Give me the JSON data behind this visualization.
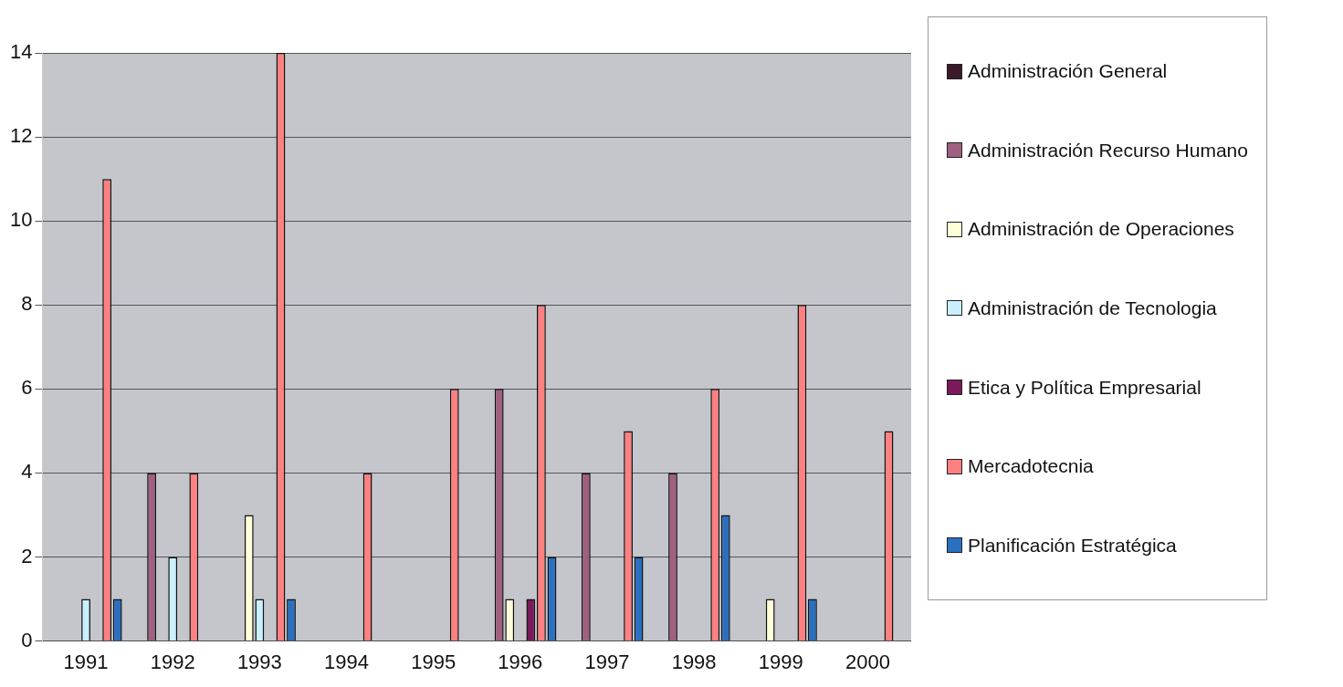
{
  "chart_data": {
    "type": "bar",
    "categories": [
      "1991",
      "1992",
      "1993",
      "1994",
      "1995",
      "1996",
      "1997",
      "1998",
      "1999",
      "2000"
    ],
    "series": [
      {
        "name": "Administración General",
        "color": "#3a1a2a",
        "values": [
          0,
          0,
          0,
          0,
          0,
          0,
          0,
          0,
          0,
          0
        ]
      },
      {
        "name": "Administración Recurso Humano",
        "color": "#a0607f",
        "values": [
          0,
          4,
          0,
          0,
          0,
          6,
          4,
          4,
          0,
          0
        ]
      },
      {
        "name": "Administración de Operaciones",
        "color": "#ffffd8",
        "values": [
          0,
          0,
          3,
          0,
          0,
          1,
          0,
          0,
          1,
          0
        ]
      },
      {
        "name": "Administración de Tecnologia",
        "color": "#c8f0ff",
        "values": [
          1,
          2,
          1,
          0,
          0,
          0,
          0,
          0,
          0,
          0
        ]
      },
      {
        "name": "Etica y Política Empresarial",
        "color": "#7a1a5a",
        "values": [
          0,
          0,
          0,
          0,
          0,
          1,
          0,
          0,
          0,
          0
        ]
      },
      {
        "name": "Mercadotecnia",
        "color": "#ff8080",
        "values": [
          11,
          4,
          14,
          4,
          6,
          8,
          5,
          6,
          8,
          5
        ]
      },
      {
        "name": "Planificación Estratégica",
        "color": "#2a70c0",
        "values": [
          1,
          0,
          1,
          0,
          0,
          2,
          2,
          3,
          1,
          0
        ]
      }
    ],
    "ylim": [
      0,
      14
    ],
    "yticks": [
      0,
      2,
      4,
      6,
      8,
      10,
      12,
      14
    ],
    "grid": "y",
    "legend": "right"
  }
}
